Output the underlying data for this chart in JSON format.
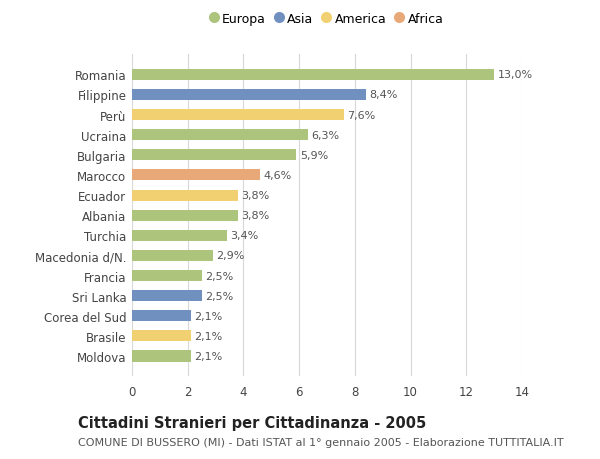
{
  "categories": [
    "Moldova",
    "Brasile",
    "Corea del Sud",
    "Sri Lanka",
    "Francia",
    "Macedonia d/N.",
    "Turchia",
    "Albania",
    "Ecuador",
    "Marocco",
    "Bulgaria",
    "Ucraina",
    "Perù",
    "Filippine",
    "Romania"
  ],
  "values": [
    2.1,
    2.1,
    2.1,
    2.5,
    2.5,
    2.9,
    3.4,
    3.8,
    3.8,
    4.6,
    5.9,
    6.3,
    7.6,
    8.4,
    13.0
  ],
  "labels": [
    "2,1%",
    "2,1%",
    "2,1%",
    "2,5%",
    "2,5%",
    "2,9%",
    "3,4%",
    "3,8%",
    "3,8%",
    "4,6%",
    "5,9%",
    "6,3%",
    "7,6%",
    "8,4%",
    "13,0%"
  ],
  "continents": [
    "Europa",
    "America",
    "Asia",
    "Asia",
    "Europa",
    "Europa",
    "Europa",
    "Europa",
    "America",
    "Africa",
    "Europa",
    "Europa",
    "America",
    "Asia",
    "Europa"
  ],
  "continent_colors": {
    "Europa": "#adc47d",
    "Asia": "#7090c0",
    "America": "#f0d070",
    "Africa": "#e8a878"
  },
  "legend_order": [
    "Europa",
    "Asia",
    "America",
    "Africa"
  ],
  "title": "Cittadini Stranieri per Cittadinanza - 2005",
  "subtitle": "COMUNE DI BUSSERO (MI) - Dati ISTAT al 1° gennaio 2005 - Elaborazione TUTTITALIA.IT",
  "xlim": [
    0,
    14
  ],
  "xticks": [
    0,
    2,
    4,
    6,
    8,
    10,
    12,
    14
  ],
  "background_color": "#ffffff",
  "grid_color": "#d8d8d8",
  "bar_height": 0.55,
  "label_fontsize": 8.0,
  "title_fontsize": 10.5,
  "subtitle_fontsize": 8.0,
  "tick_fontsize": 8.5,
  "legend_fontsize": 9.0
}
